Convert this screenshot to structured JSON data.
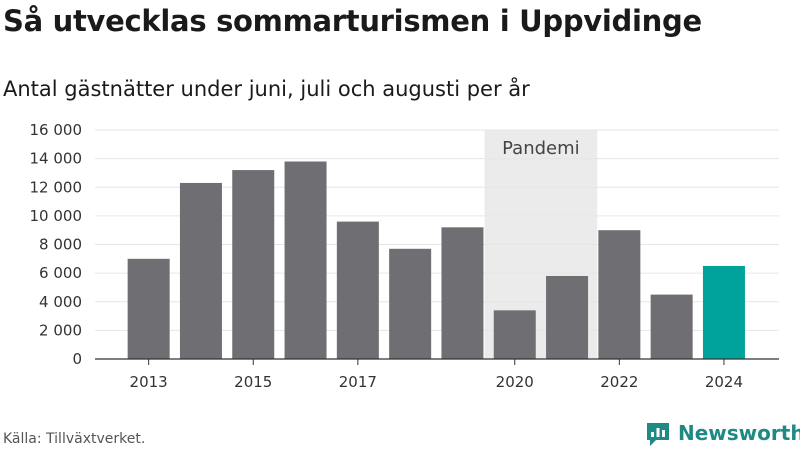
{
  "colors": {
    "bar": "#6f6e73",
    "highlight": "#00a39b",
    "pandemic_band": "#ebebeb",
    "grid": "#e6e6e6",
    "brand": "#1f8a84"
  },
  "source": "Källa: Tillväxtverket.",
  "brand": {
    "name": "Newsworthy",
    "icon": "chart-logo-icon"
  },
  "chart_data": {
    "type": "bar",
    "title": "Så utvecklas sommarturismen i Uppvidinge",
    "subtitle": "Antal gästnätter under juni, juli och augusti per år",
    "xlabel": "",
    "ylabel": "",
    "ylim": [
      0,
      16000
    ],
    "yticks": [
      0,
      2000,
      4000,
      6000,
      8000,
      10000,
      12000,
      14000,
      16000
    ],
    "ytick_labels": [
      "0",
      "2 000",
      "4 000",
      "6 000",
      "8 000",
      "10 000",
      "12 000",
      "14 000",
      "16 000"
    ],
    "categories": [
      "2013",
      "2014",
      "2015",
      "2016",
      "2017",
      "2018",
      "2019",
      "2020",
      "2021",
      "2022",
      "2023",
      "2024"
    ],
    "xtick_labels": [
      "2013",
      "2015",
      "2017",
      "2020",
      "2022",
      "2024"
    ],
    "values": [
      7000,
      12300,
      13200,
      13800,
      9600,
      7700,
      9200,
      3400,
      5800,
      9000,
      4500,
      6500
    ],
    "highlight_category": "2024",
    "annotation": {
      "label": "Pandemi",
      "from": "2020",
      "to": "2021"
    },
    "grid": true,
    "legend": "none"
  }
}
